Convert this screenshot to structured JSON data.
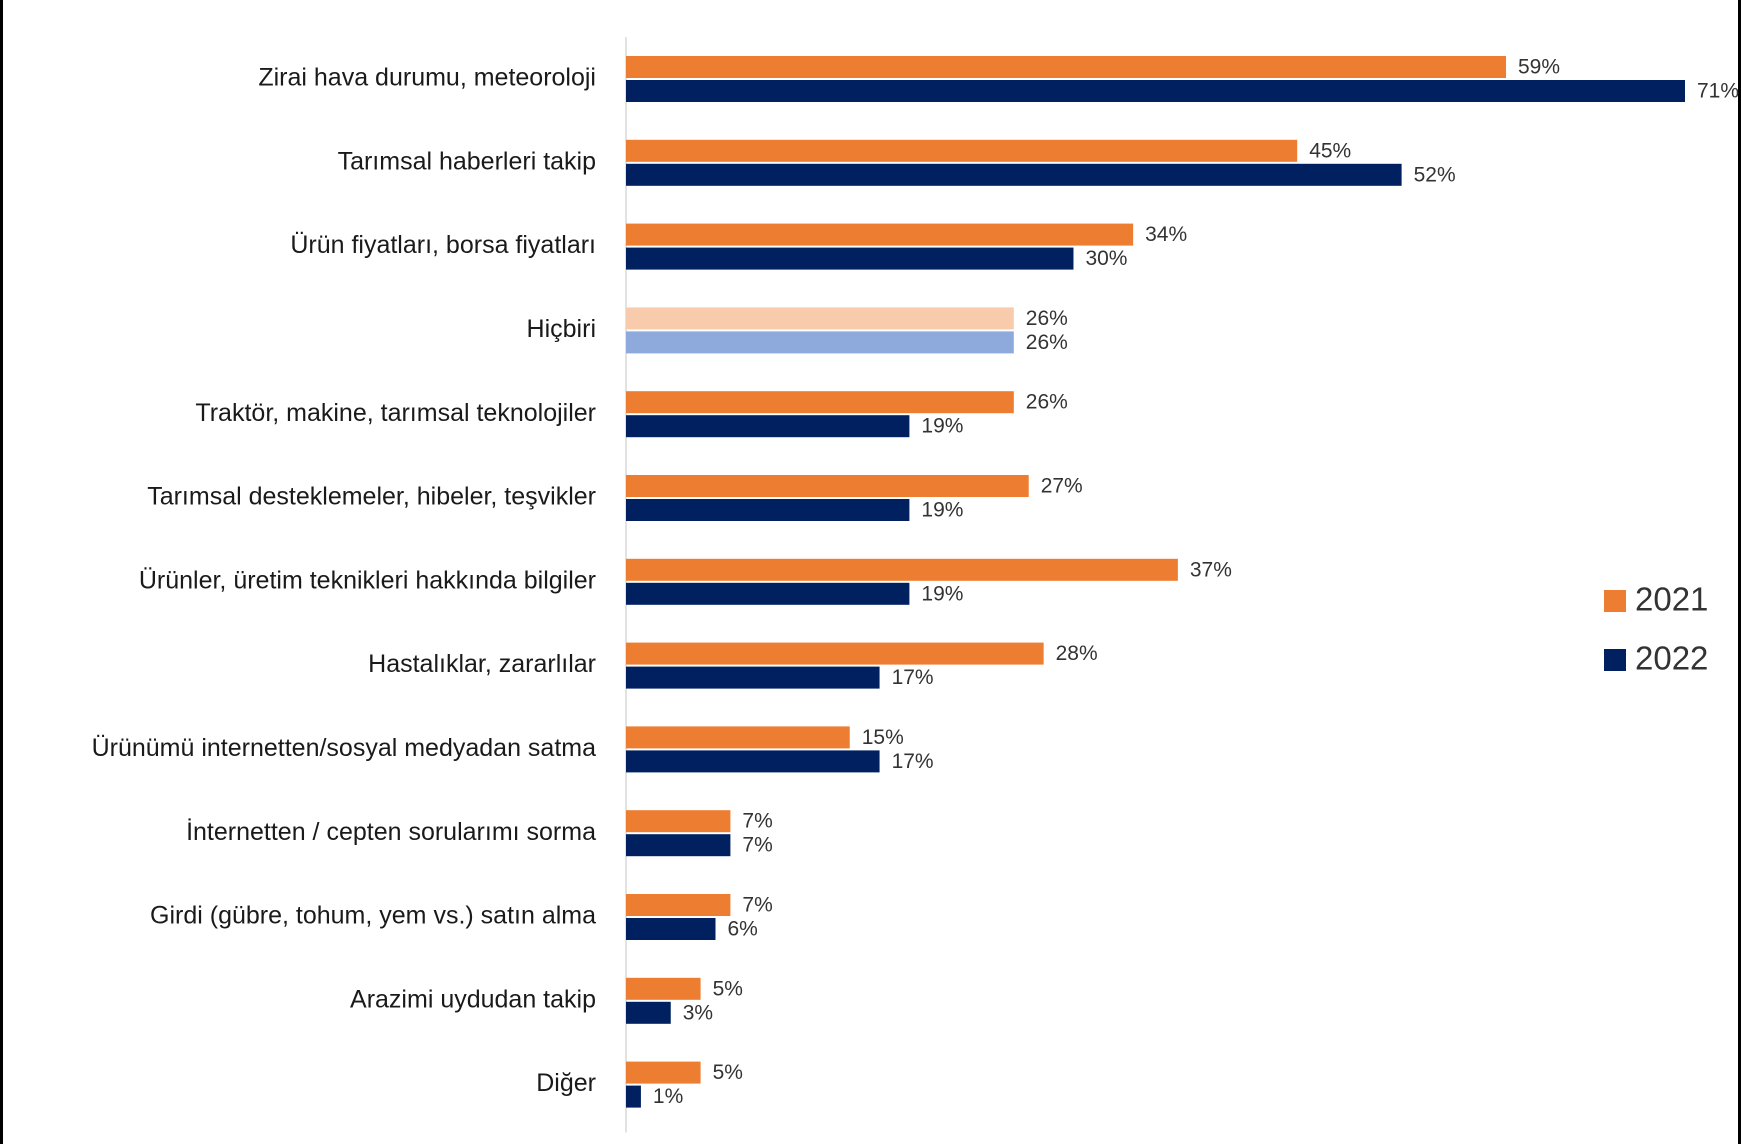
{
  "chart_data": {
    "type": "bar",
    "orientation": "horizontal",
    "categories": [
      "Zirai hava durumu, meteoroloji",
      "Tarımsal haberleri takip",
      "Ürün fiyatları, borsa fiyatları",
      "Hiçbiri",
      "Traktör, makine, tarımsal teknolojiler",
      "Tarımsal desteklemeler, hibeler, teşvikler",
      "Ürünler, üretim teknikleri hakkında bilgiler",
      "Hastalıklar, zararlılar",
      "Ürünümü internetten/sosyal medyadan satma",
      "İnternetten / cepten sorularımı sorma",
      "Girdi (gübre, tohum, yem vs.) satın alma",
      "Arazimi uydudan takip",
      "Diğer"
    ],
    "series": [
      {
        "name": "2021",
        "color": "#ED7D31",
        "values": [
          59,
          45,
          34,
          26,
          26,
          27,
          37,
          28,
          15,
          7,
          7,
          5,
          5
        ],
        "labels": [
          "59%",
          "45%",
          "34%",
          "26%",
          "26%",
          "27%",
          "37%",
          "28%",
          "15%",
          "7%",
          "7%",
          "5%",
          "5%"
        ]
      },
      {
        "name": "2022",
        "color": "#002060",
        "values": [
          71,
          52,
          30,
          26,
          19,
          19,
          19,
          17,
          17,
          7,
          6,
          3,
          1
        ],
        "labels": [
          "71%",
          "52%",
          "30%",
          "26%",
          "19%",
          "19%",
          "19%",
          "17%",
          "17%",
          "7%",
          "6%",
          "3%",
          "1%"
        ]
      }
    ],
    "highlight": {
      "category_index": 3,
      "colors": [
        "#F8CBAD",
        "#8EA9DB"
      ]
    },
    "xlim": [
      0,
      71
    ],
    "grid": false,
    "legend_position": "right",
    "title": "",
    "xlabel": "",
    "ylabel": ""
  }
}
